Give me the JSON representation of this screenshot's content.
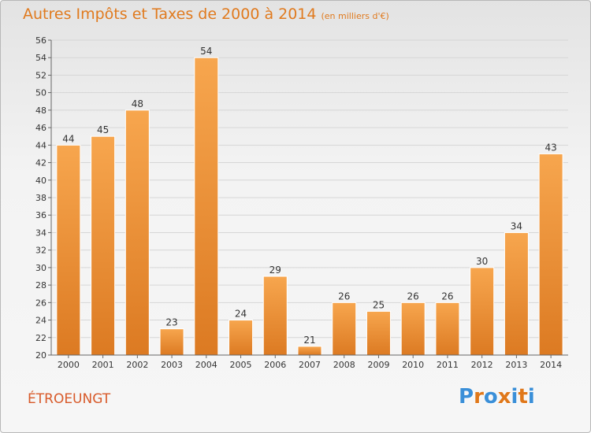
{
  "title": "Autres Impôts et Taxes de 2000 à 2014",
  "unit": "(en milliers d'€)",
  "commune": "ÉTROEUNGT",
  "logo": {
    "text": "Proxiti",
    "letter_colors": [
      "#3a8fd8",
      "#e0781a",
      "#3a8fd8",
      "#e0781a",
      "#3a8fd8",
      "#e0781a",
      "#3a8fd8"
    ]
  },
  "chart_data": {
    "type": "bar",
    "categories": [
      "2000",
      "2001",
      "2002",
      "2003",
      "2004",
      "2005",
      "2006",
      "2007",
      "2008",
      "2009",
      "2010",
      "2011",
      "2012",
      "2013",
      "2014"
    ],
    "values": [
      44,
      45,
      48,
      23,
      54,
      24,
      29,
      21,
      26,
      25,
      26,
      26,
      30,
      34,
      43
    ],
    "ylim": [
      20,
      56
    ],
    "yticks": [
      20,
      22,
      24,
      26,
      28,
      30,
      32,
      34,
      36,
      38,
      40,
      42,
      44,
      46,
      48,
      50,
      52,
      54,
      56
    ],
    "grid": true,
    "bar_color": "#f3a04a"
  }
}
